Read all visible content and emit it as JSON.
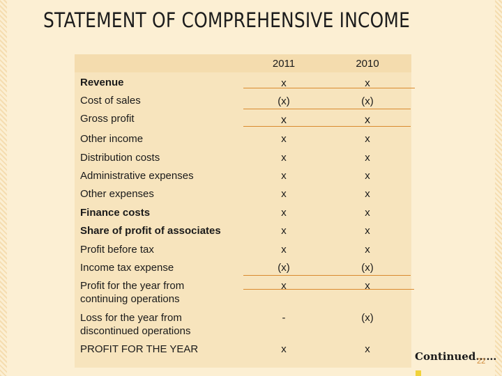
{
  "title": "STATEMENT OF COMPREHENSIVE INCOME",
  "columns": [
    "2011",
    "2010"
  ],
  "rows": [
    {
      "label": "Revenue",
      "v2011": "x",
      "v2010": "x"
    },
    {
      "label": "Cost of sales",
      "v2011": "(x)",
      "v2010": "(x)"
    },
    {
      "label": "Gross profit",
      "v2011": "x",
      "v2010": "x"
    },
    {
      "label": "Other income",
      "v2011": "x",
      "v2010": "x"
    },
    {
      "label": "Distribution costs",
      "v2011": "x",
      "v2010": "x"
    },
    {
      "label": "Administrative expenses",
      "v2011": "x",
      "v2010": "x"
    },
    {
      "label": "Other expenses",
      "v2011": "x",
      "v2010": "x"
    },
    {
      "label": "Finance costs",
      "v2011": "x",
      "v2010": "x"
    },
    {
      "label": "Share of profit of associates",
      "v2011": "x",
      "v2010": "x"
    },
    {
      "label": "Profit before tax",
      "v2011": "x",
      "v2010": "x"
    },
    {
      "label": "Income tax expense",
      "v2011": "(x)",
      "v2010": "(x)"
    },
    {
      "label_line1": "Profit for the year from",
      "label_line2": "continuing operations",
      "v2011": "x",
      "v2010": "x"
    },
    {
      "label_line1": "Loss for the year from",
      "label_line2": "discontinued operations",
      "v2011": "-",
      "v2010": "(x)"
    },
    {
      "label": "PROFIT FOR THE YEAR",
      "v2011": "x",
      "v2010": "x"
    }
  ],
  "footer": {
    "continued": "Continued……",
    "page_number": "22"
  },
  "colors": {
    "background": "#fcefd3",
    "panel": "#f7e4bd",
    "accent_rule": "#d98a2e"
  }
}
